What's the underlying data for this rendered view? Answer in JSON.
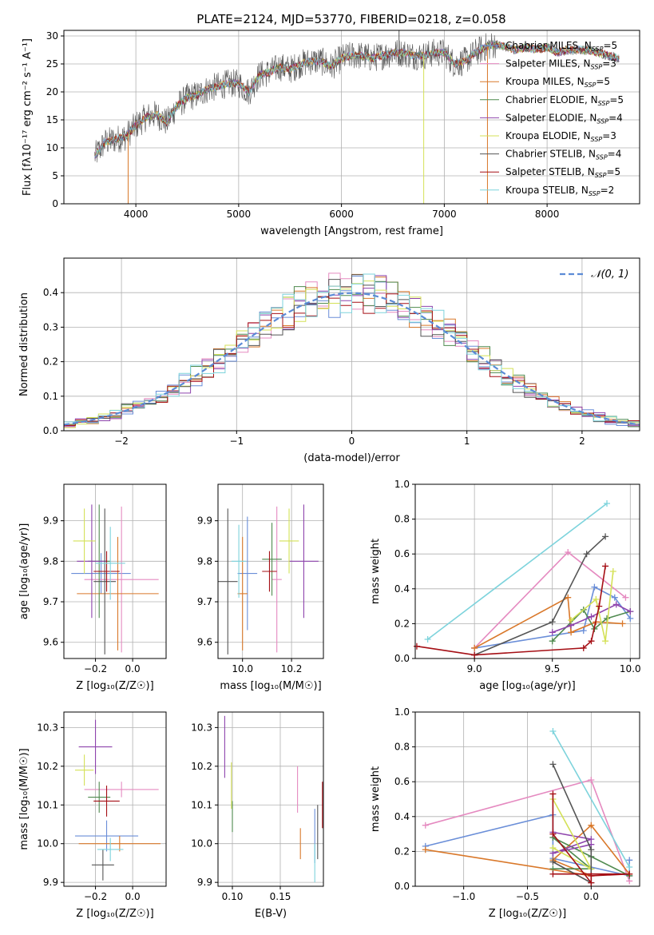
{
  "figure_title": "PLATE=2124, MJD=53770, FIBERID=0218, z=0.058",
  "colors": {
    "models": [
      "#6a8ed8",
      "#e58ac0",
      "#d9782a",
      "#4f8a4f",
      "#8e44ad",
      "#d4e157",
      "#555555",
      "#a50f15",
      "#7dd3dc"
    ],
    "normal_curve": "#5b8bd6",
    "grid": "#b0b0b0"
  },
  "legend": {
    "spectrum": [
      {
        "name": "Chabrier MILES, N",
        "sub": "SSP",
        "suffix": "=5"
      },
      {
        "name": "Salpeter MILES, N",
        "sub": "SSP",
        "suffix": "=3"
      },
      {
        "name": "Kroupa MILES, N",
        "sub": "SSP",
        "suffix": "=5"
      },
      {
        "name": "Chabrier ELODIE, N",
        "sub": "SSP",
        "suffix": "=5"
      },
      {
        "name": "Salpeter ELODIE, N",
        "sub": "SSP",
        "suffix": "=4"
      },
      {
        "name": "Kroupa ELODIE, N",
        "sub": "SSP",
        "suffix": "=3"
      },
      {
        "name": "Chabrier STELIB, N",
        "sub": "SSP",
        "suffix": "=4"
      },
      {
        "name": "Salpeter STELIB, N",
        "sub": "SSP",
        "suffix": "=5"
      },
      {
        "name": "Kroupa STELIB, N",
        "sub": "SSP",
        "suffix": "=2"
      }
    ],
    "residual": "𝒩(0, 1)"
  },
  "chart_data": [
    {
      "type": "line",
      "panel": "spectrum",
      "xlabel": "wavelength [Angstrom, rest frame]",
      "ylabel": "Flux [fλ10⁻¹⁷ erg cm⁻² s⁻¹ A⁻¹]",
      "xlim": [
        3300,
        8900
      ],
      "ylim": [
        0,
        31
      ],
      "xticks": [
        "4000",
        "5000",
        "6000",
        "7000",
        "8000"
      ],
      "yticks": [
        "0",
        "5",
        "10",
        "15",
        "20",
        "25",
        "30"
      ],
      "x": [
        3600,
        3700,
        3800,
        3900,
        4000,
        4100,
        4200,
        4300,
        4400,
        4500,
        4600,
        4700,
        4800,
        4900,
        5000,
        5100,
        5200,
        5300,
        5400,
        5500,
        5600,
        5700,
        5800,
        5900,
        6000,
        6100,
        6200,
        6300,
        6400,
        6500,
        6600,
        6700,
        6800,
        6900,
        7000,
        7100,
        7200,
        7300,
        7400,
        7500,
        7600,
        7700,
        7800,
        7900,
        8000,
        8100,
        8200,
        8300,
        8400,
        8500,
        8600,
        8700
      ],
      "series": [
        {
          "name": "model",
          "values": [
            8.5,
            11,
            11.5,
            12,
            14,
            15.5,
            16,
            14.5,
            17.5,
            19,
            19.5,
            20.5,
            21,
            21.5,
            21.5,
            20,
            23,
            23.5,
            24.5,
            24,
            25,
            25.5,
            25.5,
            24.5,
            26,
            26.5,
            26.5,
            26,
            26.5,
            27,
            27,
            26.5,
            26.5,
            27,
            27,
            25,
            25.5,
            27,
            28,
            28.5,
            28,
            27.5,
            28,
            27.5,
            28,
            27,
            27.5,
            27.5,
            27.5,
            27,
            26.5,
            26
          ]
        }
      ],
      "spikes": [
        {
          "x": 3925,
          "value": 0
        },
        {
          "x": 6800,
          "value": 0
        },
        {
          "x": 7420,
          "value": 0
        },
        {
          "x": 6560,
          "value": 31
        }
      ]
    },
    {
      "type": "histogram",
      "panel": "residuals",
      "xlabel": "(data-model)/error",
      "ylabel": "Normed distribution",
      "xlim": [
        -2.5,
        2.5
      ],
      "ylim": [
        0,
        0.5
      ],
      "xticks": [
        "−2",
        "−1",
        "0",
        "1",
        "2"
      ],
      "yticks": [
        "0.0",
        "0.1",
        "0.2",
        "0.3",
        "0.4"
      ],
      "normal": {
        "mean": 0,
        "sigma": 1
      }
    },
    {
      "type": "scatter",
      "panel": "age_vs_Z",
      "xlabel": "Z [log₁₀(Z/Z☉)]",
      "ylabel": "age  [log₁₀(age/yr)]",
      "xlim": [
        -0.37,
        0.18
      ],
      "ylim": [
        9.56,
        9.99
      ],
      "xticks": [
        "−0.2",
        "0.0"
      ],
      "yticks": [
        "9.6",
        "9.7",
        "9.8",
        "9.9"
      ],
      "points": [
        {
          "x": -0.17,
          "y": 9.77,
          "xerr": 0.16,
          "yerr": 0.05
        },
        {
          "x": -0.06,
          "y": 9.755,
          "xerr": 0.2,
          "yerr": 0.18
        },
        {
          "x": -0.08,
          "y": 9.72,
          "xerr": 0.22,
          "yerr": 0.14
        },
        {
          "x": -0.18,
          "y": 9.8,
          "xerr": 0.06,
          "yerr": 0.14
        },
        {
          "x": -0.22,
          "y": 9.8,
          "xerr": 0.08,
          "yerr": 0.14
        },
        {
          "x": -0.26,
          "y": 9.85,
          "xerr": 0.06,
          "yerr": 0.08
        },
        {
          "x": -0.15,
          "y": 9.75,
          "xerr": 0.06,
          "yerr": 0.18
        },
        {
          "x": -0.14,
          "y": 9.775,
          "xerr": 0.07,
          "yerr": 0.05
        },
        {
          "x": -0.12,
          "y": 9.795,
          "xerr": 0.08,
          "yerr": 0.09
        }
      ]
    },
    {
      "type": "scatter",
      "panel": "age_vs_mass",
      "xlabel": "mass [log₁₀(M/M☉)]",
      "ylabel": "",
      "xlim": [
        9.9,
        10.33
      ],
      "ylim": [
        9.56,
        9.99
      ],
      "xticks": [
        "10.0",
        "10.2"
      ],
      "yticks": [
        "9.6",
        "9.7",
        "9.8",
        "9.9"
      ],
      "points": [
        {
          "x": 10.02,
          "y": 9.77,
          "xerr": 0.04,
          "yerr": 0.14
        },
        {
          "x": 10.14,
          "y": 9.755,
          "xerr": 0.02,
          "yerr": 0.18
        },
        {
          "x": 10.0,
          "y": 9.72,
          "xerr": 0.02,
          "yerr": 0.14
        },
        {
          "x": 10.12,
          "y": 9.805,
          "xerr": 0.04,
          "yerr": 0.09
        },
        {
          "x": 10.25,
          "y": 9.8,
          "xerr": 0.06,
          "yerr": 0.14
        },
        {
          "x": 10.19,
          "y": 9.85,
          "xerr": 0.04,
          "yerr": 0.08
        },
        {
          "x": 9.94,
          "y": 9.75,
          "xerr": 0.04,
          "yerr": 0.18
        },
        {
          "x": 10.11,
          "y": 9.775,
          "xerr": 0.03,
          "yerr": 0.05
        },
        {
          "x": 9.985,
          "y": 9.8,
          "xerr": 0.03,
          "yerr": 0.09
        }
      ]
    },
    {
      "type": "line",
      "panel": "weight_vs_age",
      "xlabel": "age  [log₁₀(age/yr)]",
      "ylabel": "mass weight",
      "xlim": [
        8.62,
        10.06
      ],
      "ylim": [
        0,
        1.0
      ],
      "xticks": [
        "9.0",
        "9.5",
        "10.0"
      ],
      "yticks": [
        "0.0",
        "0.2",
        "0.4",
        "0.6",
        "0.8",
        "1.0"
      ],
      "series": [
        {
          "x": [
            9.0,
            9.7,
            9.77,
            9.9,
            10.0
          ],
          "values": [
            0.06,
            0.16,
            0.41,
            0.35,
            0.23
          ]
        },
        {
          "x": [
            9.0,
            9.6,
            9.97
          ],
          "values": [
            0.06,
            0.61,
            0.35
          ]
        },
        {
          "x": [
            9.0,
            9.6,
            9.62,
            9.78,
            9.95
          ],
          "values": [
            0.06,
            0.35,
            0.15,
            0.21,
            0.2
          ]
        },
        {
          "x": [
            9.5,
            9.7,
            9.77,
            9.85,
            10.0
          ],
          "values": [
            0.1,
            0.28,
            0.17,
            0.23,
            0.27
          ]
        },
        {
          "x": [
            9.5,
            9.62,
            9.75,
            9.91,
            10.0
          ],
          "values": [
            0.15,
            0.19,
            0.24,
            0.31,
            0.27
          ]
        },
        {
          "x": [
            9.62,
            9.78,
            9.84,
            9.89
          ],
          "values": [
            0.22,
            0.34,
            0.1,
            0.5
          ]
        },
        {
          "x": [
            9.0,
            9.5,
            9.72,
            9.84
          ],
          "values": [
            0.02,
            0.21,
            0.6,
            0.7
          ]
        },
        {
          "x": [
            8.63,
            9.0,
            9.7,
            9.75,
            9.8,
            9.84
          ],
          "values": [
            0.07,
            0.02,
            0.06,
            0.1,
            0.3,
            0.53
          ]
        },
        {
          "x": [
            8.7,
            9.85
          ],
          "values": [
            0.11,
            0.89
          ]
        }
      ]
    },
    {
      "type": "scatter",
      "panel": "mass_vs_Z",
      "xlabel": "Z [log₁₀(Z/Z☉)]",
      "ylabel": "mass [log₁₀(M/M☉)]",
      "xlim": [
        -0.37,
        0.18
      ],
      "ylim": [
        9.89,
        10.34
      ],
      "xticks": [
        "−0.2",
        "0.0"
      ],
      "yticks": [
        "9.9",
        "10.0",
        "10.1",
        "10.2",
        "10.3"
      ],
      "points": [
        {
          "x": -0.14,
          "y": 10.02,
          "xerr": 0.17,
          "yerr": 0.04
        },
        {
          "x": -0.06,
          "y": 10.14,
          "xerr": 0.2,
          "yerr": 0.02
        },
        {
          "x": -0.07,
          "y": 10.0,
          "xerr": 0.22,
          "yerr": 0.02
        },
        {
          "x": -0.18,
          "y": 10.12,
          "xerr": 0.06,
          "yerr": 0.04
        },
        {
          "x": -0.2,
          "y": 10.25,
          "xerr": 0.09,
          "yerr": 0.07
        },
        {
          "x": -0.26,
          "y": 10.19,
          "xerr": 0.05,
          "yerr": 0.04
        },
        {
          "x": -0.16,
          "y": 9.945,
          "xerr": 0.06,
          "yerr": 0.04
        },
        {
          "x": -0.14,
          "y": 10.11,
          "xerr": 0.07,
          "yerr": 0.04
        },
        {
          "x": -0.12,
          "y": 9.985,
          "xerr": 0.07,
          "yerr": 0.03
        }
      ]
    },
    {
      "type": "scatter",
      "panel": "mass_vs_ebv",
      "xlabel": "E(B-V)",
      "ylabel": "",
      "xlim": [
        0.085,
        0.195
      ],
      "ylim": [
        9.89,
        10.34
      ],
      "xticks": [
        "0.10",
        "0.15"
      ],
      "yticks": [
        "9.9",
        "10.0",
        "10.1",
        "10.2",
        "10.3"
      ],
      "points": [
        {
          "x": 0.186,
          "y": 10.02,
          "xerr": 0,
          "yerr": 0.07
        },
        {
          "x": 0.168,
          "y": 10.14,
          "xerr": 0,
          "yerr": 0.06
        },
        {
          "x": 0.171,
          "y": 10.0,
          "xerr": 0,
          "yerr": 0.04
        },
        {
          "x": 0.1,
          "y": 10.07,
          "xerr": 0,
          "yerr": 0.04
        },
        {
          "x": 0.092,
          "y": 10.25,
          "xerr": 0,
          "yerr": 0.08
        },
        {
          "x": 0.099,
          "y": 10.15,
          "xerr": 0,
          "yerr": 0.06
        },
        {
          "x": 0.189,
          "y": 10.03,
          "xerr": 0,
          "yerr": 0.07
        },
        {
          "x": 0.194,
          "y": 10.1,
          "xerr": 0,
          "yerr": 0.06
        },
        {
          "x": 0.186,
          "y": 9.95,
          "xerr": 0,
          "yerr": 0.05
        }
      ]
    },
    {
      "type": "line",
      "panel": "weight_vs_Z",
      "xlabel": "Z [log₁₀(Z/Z☉)]",
      "ylabel": "mass weight",
      "xlim": [
        -1.38,
        0.38
      ],
      "ylim": [
        0,
        1.0
      ],
      "xticks": [
        "−1.0",
        "−0.5",
        "0.0"
      ],
      "yticks": [
        "0.0",
        "0.2",
        "0.4",
        "0.6",
        "0.8",
        "1.0"
      ],
      "series": [
        {
          "x": [
            -1.3,
            -0.3,
            -0.3,
            0.3,
            0.3
          ],
          "values": [
            0.23,
            0.41,
            0.16,
            0.06,
            0.15
          ]
        },
        {
          "x": [
            -1.3,
            0.0,
            0.3
          ],
          "values": [
            0.35,
            0.61,
            0.03
          ]
        },
        {
          "x": [
            -1.3,
            0.0,
            -0.3,
            0.0,
            0.3
          ],
          "values": [
            0.21,
            0.06,
            0.15,
            0.35,
            0.07
          ]
        },
        {
          "x": [
            -0.3,
            0.0,
            -0.3,
            0.0,
            0.3
          ],
          "values": [
            0.1,
            0.1,
            0.28,
            0.17,
            0.06
          ]
        },
        {
          "x": [
            -0.3,
            0.0,
            -0.3,
            0.0
          ],
          "values": [
            0.31,
            0.27,
            0.19,
            0.24
          ]
        },
        {
          "x": [
            -0.3,
            0.0,
            -0.3
          ],
          "values": [
            0.5,
            0.1,
            0.22
          ]
        },
        {
          "x": [
            -0.3,
            0.0,
            0.0,
            -0.3
          ],
          "values": [
            0.7,
            0.21,
            0.02,
            0.14
          ]
        },
        {
          "x": [
            -0.3,
            -0.3,
            0.0,
            0.0,
            0.3,
            -0.3
          ],
          "values": [
            0.53,
            0.3,
            0.02,
            0.06,
            0.07,
            0.07
          ]
        },
        {
          "x": [
            -0.3,
            0.3
          ],
          "values": [
            0.89,
            0.11
          ]
        }
      ]
    }
  ]
}
